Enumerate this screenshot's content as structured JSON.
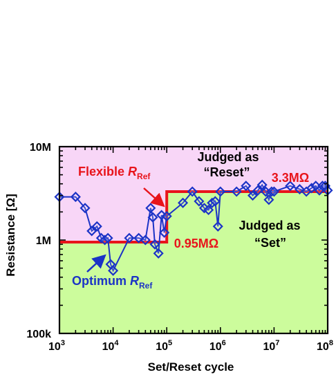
{
  "chart_data": {
    "type": "scatter",
    "title": "",
    "xlabel": "Set/Reset cycle",
    "ylabel": "Resistance [Ω]",
    "xscale": "log",
    "yscale": "log",
    "xlim": [
      1000,
      100000000
    ],
    "ylim": [
      100000,
      10000000
    ],
    "x_ticks": [
      {
        "value": 1000,
        "base": "10",
        "exp": "3"
      },
      {
        "value": 10000,
        "base": "10",
        "exp": "4"
      },
      {
        "value": 100000,
        "base": "10",
        "exp": "5"
      },
      {
        "value": 1000000,
        "base": "10",
        "exp": "6"
      },
      {
        "value": 10000000,
        "base": "10",
        "exp": "7"
      },
      {
        "value": 100000000,
        "base": "10",
        "exp": "8"
      }
    ],
    "y_ticks": [
      {
        "value": 100000,
        "label": "100k"
      },
      {
        "value": 1000000,
        "label": "1M"
      },
      {
        "value": 10000000,
        "label": "10M"
      }
    ],
    "grid": false,
    "colors": {
      "reset_region": "#f8d6f7",
      "set_region": "#ccfc9c",
      "reference_line": "#e8141b",
      "measured": "#1b33c6"
    },
    "series": [
      {
        "x": [
          1000,
          2000,
          3000,
          4000,
          5000,
          6000,
          7000,
          8000,
          9000,
          10000,
          20000,
          30000,
          40000,
          50000,
          55000,
          60000,
          70000,
          80000,
          90000,
          100000,
          200000,
          300000,
          400000,
          500000,
          600000,
          700000,
          800000,
          900000,
          1000000,
          2000000,
          3000000,
          4000000,
          5000000,
          6000000,
          7000000,
          8000000,
          9000000,
          10000000,
          20000000,
          30000000,
          40000000,
          50000000,
          60000000,
          70000000,
          80000000,
          90000000,
          100000000
        ],
        "y": [
          2900000,
          2900000,
          2200000,
          1250000,
          1400000,
          1050000,
          1000000,
          1050000,
          550000,
          470000,
          1050000,
          1050000,
          1000000,
          2200000,
          1750000,
          900000,
          720000,
          1850000,
          1200000,
          1800000,
          2500000,
          3300000,
          2600000,
          2200000,
          2100000,
          2500000,
          2600000,
          1400000,
          3300000,
          3300000,
          3800000,
          3000000,
          3400000,
          3900000,
          3300000,
          2700000,
          3300000,
          3300000,
          3800000,
          3500000,
          3300000,
          3600000,
          3800000,
          3400000,
          3800000,
          3800000,
          3400000
        ]
      },
      {
        "x": [
          1000,
          100000,
          100000,
          100000000
        ],
        "y": [
          950000,
          950000,
          3300000,
          3300000
        ]
      }
    ],
    "annotations": {
      "reset_judge_line1": "Judged as",
      "reset_judge_line2": "“Reset”",
      "set_judge_line1": "Judged as",
      "set_judge_line2": "“Set”",
      "flexible_prefix": "Flexible ",
      "flexible_r": "R",
      "flexible_sub": "Ref",
      "optimum_prefix": "Optimum ",
      "optimum_r": "R",
      "optimum_sub": "Ref",
      "upper_ref_value": "3.3MΩ",
      "lower_ref_value": "0.95MΩ"
    }
  }
}
